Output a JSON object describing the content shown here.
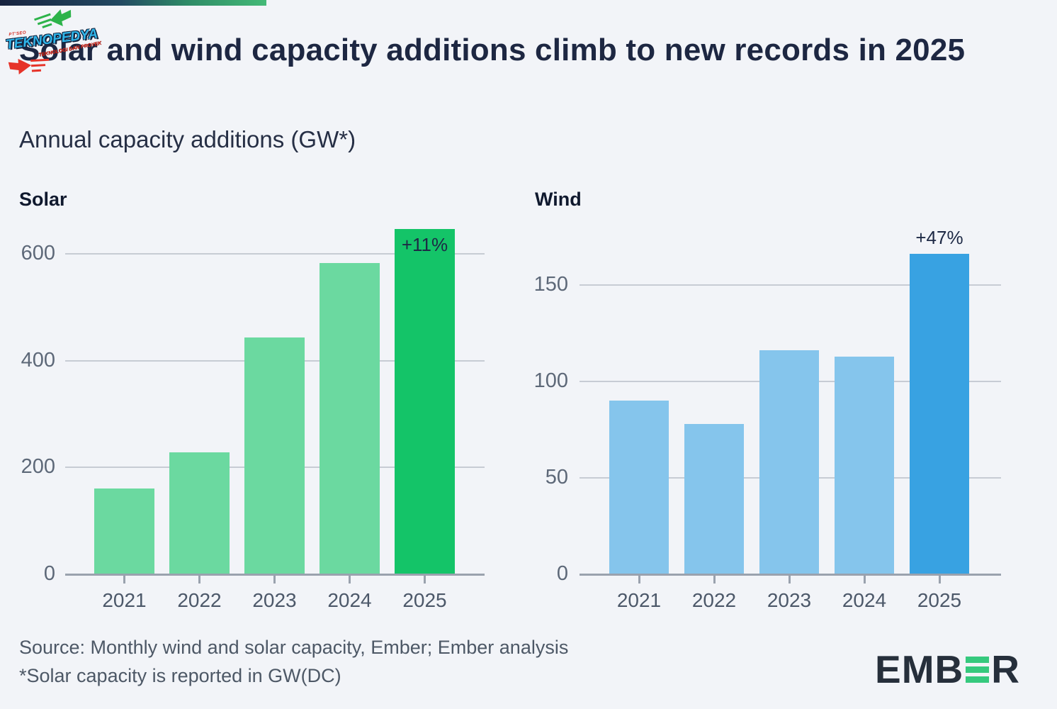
{
  "header": {
    "title": "Solar and wind capacity additions climb to new records in 2025",
    "subtitle": "Annual capacity additions (GW*)"
  },
  "watermark": {
    "name": "TEKNOPEDYA",
    "small_text_top": "PT'SEO",
    "small_text_bottom": "TEKNOLOGI DAN PROYEK",
    "arrow_up_color": "#2db34a",
    "arrow_down_color": "#e63329"
  },
  "footer": {
    "source_line1": "Source: Monthly wind and solar capacity, Ember; Ember analysis",
    "source_line2": "*Solar capacity is reported in GW(DC)",
    "logo_text_left": "EMB",
    "logo_text_right": "R",
    "logo_green": "#36c97e"
  },
  "chart_data": [
    {
      "type": "bar",
      "title": "Solar",
      "categories": [
        "2021",
        "2022",
        "2023",
        "2024",
        "2025"
      ],
      "values": [
        160,
        228,
        443,
        583,
        647
      ],
      "unit": "GW",
      "yticks": [
        0,
        200,
        400,
        600
      ],
      "ylim": [
        0,
        680
      ],
      "grid": true,
      "bar_color": "#6bd9a0",
      "highlight_index": 4,
      "highlight_color": "#14c468",
      "annotation": {
        "text": "+11%",
        "position": "inside"
      }
    },
    {
      "type": "bar",
      "title": "Wind",
      "categories": [
        "2021",
        "2022",
        "2023",
        "2024",
        "2025"
      ],
      "values": [
        90,
        78,
        116,
        113,
        166
      ],
      "unit": "GW",
      "yticks": [
        0,
        50,
        100,
        150
      ],
      "ylim": [
        0,
        185
      ],
      "grid": true,
      "bar_color": "#85c5ec",
      "highlight_index": 4,
      "highlight_color": "#38a2e2",
      "annotation": {
        "text": "+47%",
        "position": "above"
      }
    }
  ]
}
